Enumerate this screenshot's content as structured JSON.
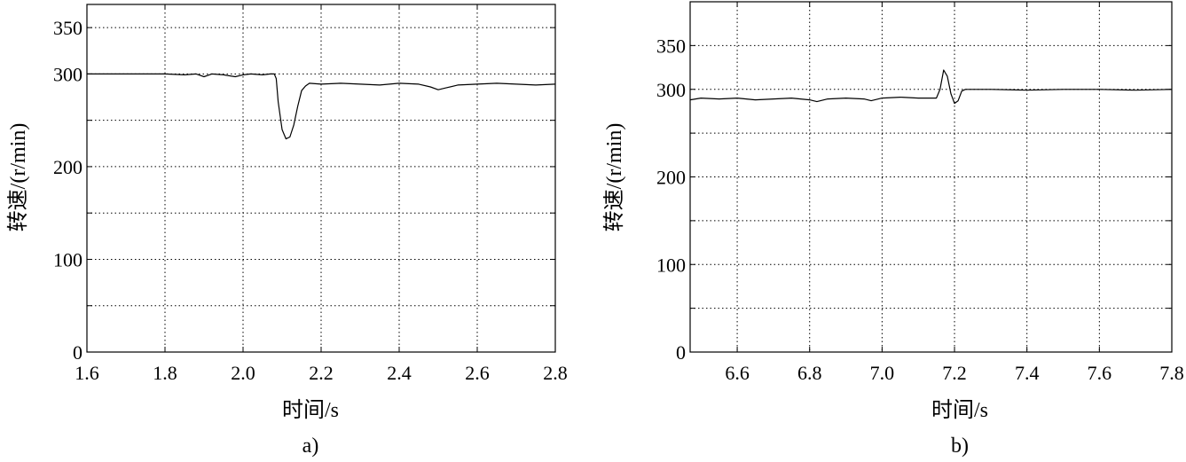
{
  "chart_data": [
    {
      "type": "line",
      "caption": "a)",
      "xlabel": "时间/s",
      "ylabel": "转速/(r/min)",
      "xlim": [
        1.6,
        2.8
      ],
      "ylim": [
        0,
        375
      ],
      "x_ticks": [
        1.6,
        1.8,
        2.0,
        2.2,
        2.4,
        2.6,
        2.8
      ],
      "x_tick_labels": [
        "1.6",
        "1.8",
        "2.0",
        "2.2",
        "2.4",
        "2.6",
        "2.8"
      ],
      "y_ticks": [
        0,
        50,
        100,
        150,
        200,
        250,
        300,
        350
      ],
      "y_tick_labels": [
        "0",
        "",
        "100",
        "",
        "200",
        "",
        "300",
        "350"
      ],
      "grid": true,
      "series": [
        {
          "x": [
            1.6,
            1.7,
            1.8,
            1.85,
            1.88,
            1.9,
            1.92,
            1.95,
            1.98,
            2.0,
            2.02,
            2.05,
            2.07,
            2.08,
            2.085,
            2.09,
            2.1,
            2.11,
            2.12,
            2.13,
            2.14,
            2.15,
            2.16,
            2.17,
            2.2,
            2.25,
            2.3,
            2.35,
            2.4,
            2.45,
            2.48,
            2.5,
            2.52,
            2.55,
            2.6,
            2.65,
            2.7,
            2.75,
            2.8
          ],
          "y": [
            300,
            300,
            300,
            299,
            300,
            297,
            300,
            299,
            297,
            299,
            300,
            299,
            300,
            300,
            295,
            270,
            240,
            230,
            232,
            245,
            265,
            282,
            287,
            290,
            289,
            290,
            289,
            288,
            290,
            289,
            286,
            283,
            285,
            288,
            289,
            290,
            289,
            288,
            289
          ]
        }
      ]
    },
    {
      "type": "line",
      "caption": "b)",
      "xlabel": "时间/s",
      "ylabel": "转速/(r/min)",
      "xlim": [
        6.47,
        7.8
      ],
      "ylim": [
        0,
        400
      ],
      "x_ticks": [
        6.6,
        6.8,
        7.0,
        7.2,
        7.4,
        7.6,
        7.8
      ],
      "x_tick_labels": [
        "6.6",
        "6.8",
        "7.0",
        "7.2",
        "7.4",
        "7.6",
        "7.8"
      ],
      "y_ticks": [
        0,
        50,
        100,
        150,
        200,
        250,
        300,
        350
      ],
      "y_tick_labels": [
        "0",
        "",
        "100",
        "",
        "200",
        "",
        "300",
        "350"
      ],
      "grid": true,
      "series": [
        {
          "x": [
            6.47,
            6.5,
            6.55,
            6.6,
            6.65,
            6.7,
            6.75,
            6.8,
            6.82,
            6.85,
            6.9,
            6.95,
            6.97,
            7.0,
            7.05,
            7.1,
            7.15,
            7.16,
            7.17,
            7.18,
            7.19,
            7.2,
            7.21,
            7.22,
            7.23,
            7.25,
            7.3,
            7.4,
            7.5,
            7.6,
            7.7,
            7.8
          ],
          "y": [
            288,
            290,
            289,
            290,
            288,
            289,
            290,
            288,
            286,
            289,
            290,
            289,
            287,
            290,
            291,
            290,
            290,
            300,
            322,
            315,
            295,
            284,
            287,
            298,
            300,
            300,
            300,
            299,
            300,
            300,
            299,
            300
          ]
        }
      ]
    }
  ]
}
